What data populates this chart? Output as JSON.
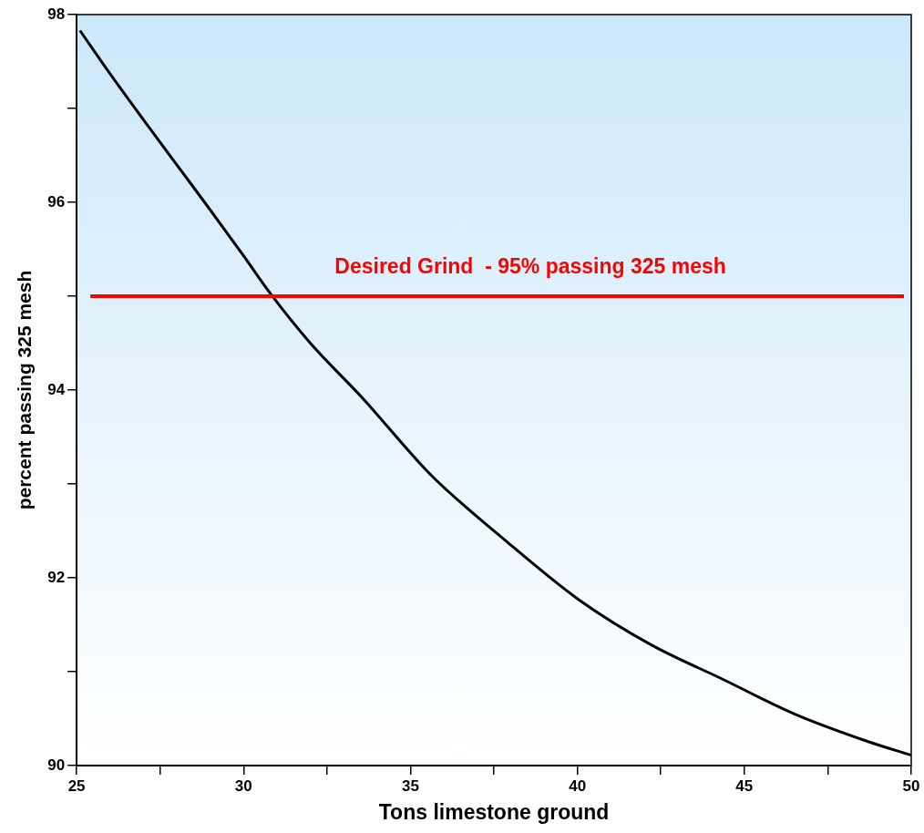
{
  "chart_data": {
    "type": "line",
    "xlabel": "Tons limestone ground",
    "ylabel": "percent passing 325 mesh",
    "x": [
      25.1,
      26,
      27,
      28,
      29,
      30,
      30.8,
      32,
      33.55,
      35.6,
      37.87,
      40.03,
      42.19,
      44.35,
      46.5,
      48.67,
      50
    ],
    "series": [
      {
        "color": "#000000",
        "values": [
          97.83,
          97.37,
          96.88,
          96.4,
          95.92,
          95.43,
          95.03,
          94.5,
          93.92,
          93.1,
          92.39,
          91.77,
          91.29,
          90.92,
          90.55,
          90.26,
          90.11
        ]
      }
    ],
    "xlim": [
      25,
      50
    ],
    "ylim": [
      90,
      98
    ],
    "xticks": [
      25,
      {
        "value": 27.5,
        "label": null
      },
      30,
      {
        "value": 32.5,
        "label": null
      },
      35,
      {
        "value": 37.5,
        "label": null
      },
      40,
      {
        "value": 42.5,
        "label": null
      },
      45,
      {
        "value": 47.5,
        "label": null
      },
      50
    ],
    "yticks": [
      90,
      {
        "value": 91,
        "label": null
      },
      92,
      {
        "value": 93,
        "label": null
      },
      94,
      {
        "value": 95,
        "label": null
      },
      96,
      {
        "value": 97,
        "label": null
      },
      98
    ],
    "ref_lines": [
      {
        "axis": "y",
        "value": 95,
        "label": "Desired Grind  - 95% passing 325 mesh",
        "color": "#ff0000"
      }
    ],
    "grid": false,
    "legend": false,
    "marker": "none",
    "line_style": "solid"
  }
}
